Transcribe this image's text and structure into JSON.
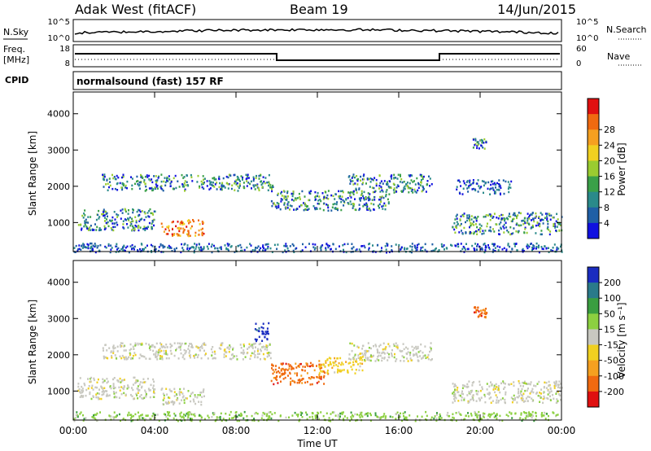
{
  "header": {
    "station": "Adak West (fitACF)",
    "beam": "Beam 19",
    "date": "14/Jun/2015"
  },
  "noise_panel": {
    "left_label": "N.Sky",
    "right_label": "N.Search",
    "left_ticks": [
      "10^5",
      "10^0"
    ],
    "right_ticks": [
      "10^5",
      "10^0"
    ]
  },
  "freq_panel": {
    "left_label_top": "Freq.",
    "left_label_unit": "[MHz]",
    "right_label": "Nave",
    "left_ticks": [
      "18",
      "8"
    ],
    "right_ticks": [
      "60",
      "0"
    ]
  },
  "cpid": {
    "label": "CPID",
    "value": "normalsound (fast) 157 RF"
  },
  "x_axis": {
    "label": "Time UT",
    "ticks": [
      "00:00",
      "04:00",
      "08:00",
      "12:00",
      "16:00",
      "20:00",
      "00:00"
    ]
  },
  "chart_data": [
    {
      "type": "heatmap",
      "title": "",
      "xlabel": "Time UT",
      "ylabel": "Slant Range [km]",
      "xlim": [
        0,
        24
      ],
      "ylim": [
        200,
        4600
      ],
      "yticks": [
        "1000",
        "2000",
        "3000",
        "4000"
      ],
      "colorbar": {
        "label": "Power [dB]",
        "ticks": [
          "4",
          "8",
          "12",
          "16",
          "20",
          "24",
          "28"
        ],
        "colors": [
          "#1010e0",
          "#1f5fa6",
          "#2a8a8a",
          "#3aa048",
          "#9acc30",
          "#f0d020",
          "#f5a020",
          "#f06a10",
          "#e01010"
        ]
      },
      "echo_bands": [
        {
          "t0": 1.4,
          "t1": 9.8,
          "r0": 1900,
          "r1": 2350,
          "level": "mid"
        },
        {
          "t0": 9.7,
          "t1": 15.5,
          "r0": 1350,
          "r1": 1900,
          "level": "mid"
        },
        {
          "t0": 13.5,
          "t1": 17.6,
          "r0": 1850,
          "r1": 2350,
          "level": "mid"
        },
        {
          "t0": 0.2,
          "t1": 4.0,
          "r0": 800,
          "r1": 1400,
          "level": "mid"
        },
        {
          "t0": 4.3,
          "t1": 6.4,
          "r0": 650,
          "r1": 1100,
          "level": "high"
        },
        {
          "t0": 18.6,
          "t1": 24.0,
          "r0": 700,
          "r1": 1300,
          "level": "mid"
        },
        {
          "t0": 19.6,
          "t1": 20.3,
          "r0": 3050,
          "r1": 3350,
          "level": "mid"
        },
        {
          "t0": 18.8,
          "t1": 21.5,
          "r0": 1800,
          "r1": 2200,
          "level": "low"
        },
        {
          "t0": 0.0,
          "t1": 24.0,
          "r0": 200,
          "r1": 450,
          "level": "low"
        }
      ]
    },
    {
      "type": "heatmap",
      "title": "",
      "xlabel": "Time UT",
      "ylabel": "Slant Range [km]",
      "xlim": [
        0,
        24
      ],
      "ylim": [
        200,
        4600
      ],
      "yticks": [
        "1000",
        "2000",
        "3000",
        "4000"
      ],
      "colorbar": {
        "label": "Velocity [m s⁻¹]",
        "ticks": [
          "200",
          "100",
          "50",
          "15",
          "-15",
          "-50",
          "-100",
          "-200"
        ],
        "colors": [
          "#1a2cc0",
          "#2a7a8a",
          "#3a9e40",
          "#8cd040",
          "#c8c8c0",
          "#f0d020",
          "#f5a020",
          "#f06a10",
          "#e01010"
        ]
      },
      "echo_bands": [
        {
          "t0": 1.4,
          "t1": 9.8,
          "r0": 1900,
          "r1": 2350,
          "level": "gray"
        },
        {
          "t0": 9.7,
          "t1": 12.5,
          "r0": 1200,
          "r1": 1800,
          "level": "red"
        },
        {
          "t0": 12.0,
          "t1": 14.2,
          "r0": 1500,
          "r1": 1950,
          "level": "yellow"
        },
        {
          "t0": 13.5,
          "t1": 17.6,
          "r0": 1850,
          "r1": 2350,
          "level": "gray"
        },
        {
          "t0": 0.2,
          "t1": 4.0,
          "r0": 800,
          "r1": 1400,
          "level": "gray"
        },
        {
          "t0": 4.3,
          "t1": 6.4,
          "r0": 650,
          "r1": 1100,
          "level": "gray"
        },
        {
          "t0": 18.6,
          "t1": 24.0,
          "r0": 700,
          "r1": 1300,
          "level": "gray"
        },
        {
          "t0": 19.6,
          "t1": 20.3,
          "r0": 3050,
          "r1": 3350,
          "level": "red"
        },
        {
          "t0": 8.9,
          "t1": 9.6,
          "r0": 2400,
          "r1": 2900,
          "level": "blue"
        },
        {
          "t0": 0.0,
          "t1": 24.0,
          "r0": 200,
          "r1": 450,
          "level": "green"
        }
      ]
    }
  ]
}
